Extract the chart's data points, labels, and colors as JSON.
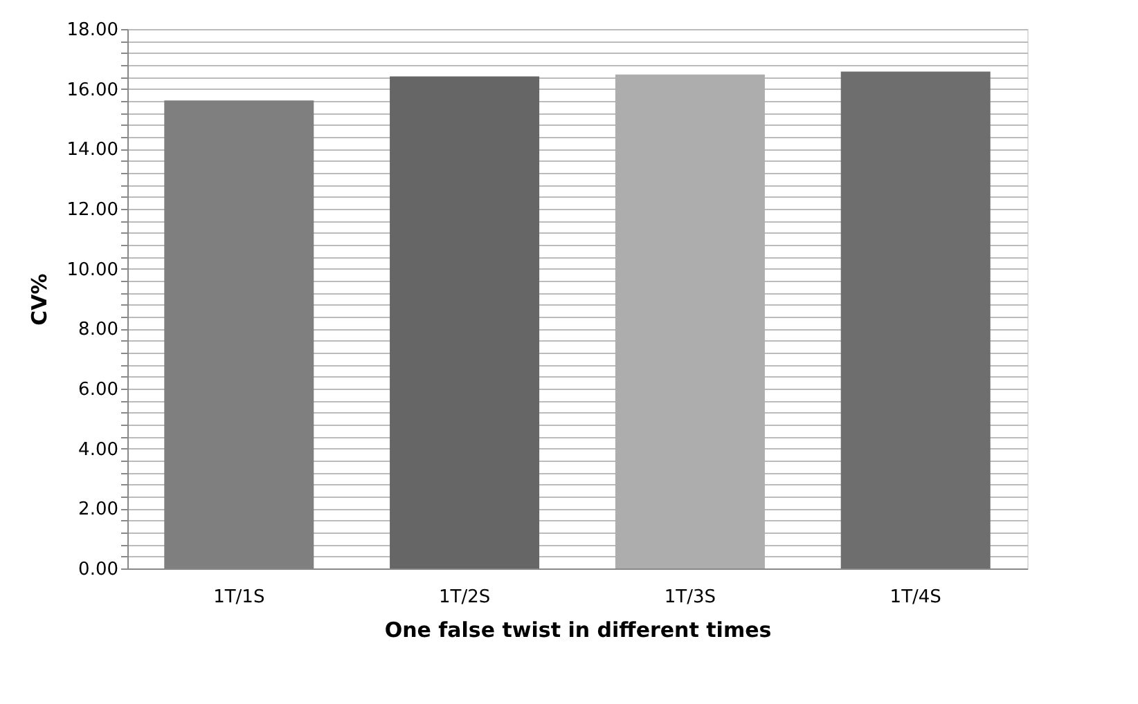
{
  "chart_data": {
    "type": "bar",
    "xlabel": "One false twist in different times",
    "ylabel": "CV%",
    "categories": [
      "1T/1S",
      "1T/2S",
      "1T/3S",
      "1T/4S"
    ],
    "values": [
      15.62,
      16.42,
      16.48,
      16.58
    ],
    "colors": [
      "#7f7f7f",
      "#666666",
      "#adadad",
      "#6e6e6e"
    ],
    "ylim": [
      0,
      18
    ],
    "yticks": [
      {
        "value": 0,
        "label": "0.00"
      },
      {
        "value": 0.4,
        "label": null
      },
      {
        "value": 0.8,
        "label": null
      },
      {
        "value": 1.2,
        "label": null
      },
      {
        "value": 1.6,
        "label": null
      },
      {
        "value": 2,
        "label": "2.00"
      },
      {
        "value": 2.4,
        "label": null
      },
      {
        "value": 2.8,
        "label": null
      },
      {
        "value": 3.2,
        "label": null
      },
      {
        "value": 3.6,
        "label": null
      },
      {
        "value": 4,
        "label": "4.00"
      },
      {
        "value": 4.4,
        "label": null
      },
      {
        "value": 4.8,
        "label": null
      },
      {
        "value": 5.2,
        "label": null
      },
      {
        "value": 5.6,
        "label": null
      },
      {
        "value": 6,
        "label": "6.00"
      },
      {
        "value": 6.4,
        "label": null
      },
      {
        "value": 6.8,
        "label": null
      },
      {
        "value": 7.2,
        "label": null
      },
      {
        "value": 7.6,
        "label": null
      },
      {
        "value": 8,
        "label": "8.00"
      },
      {
        "value": 8.4,
        "label": null
      },
      {
        "value": 8.8,
        "label": null
      },
      {
        "value": 9.2,
        "label": null
      },
      {
        "value": 9.6,
        "label": null
      },
      {
        "value": 10,
        "label": "10.00"
      },
      {
        "value": 10.4,
        "label": null
      },
      {
        "value": 10.8,
        "label": null
      },
      {
        "value": 11.2,
        "label": null
      },
      {
        "value": 11.6,
        "label": null
      },
      {
        "value": 12,
        "label": "12.00"
      },
      {
        "value": 12.4,
        "label": null
      },
      {
        "value": 12.8,
        "label": null
      },
      {
        "value": 13.2,
        "label": null
      },
      {
        "value": 13.6,
        "label": null
      },
      {
        "value": 14,
        "label": "14.00"
      },
      {
        "value": 14.4,
        "label": null
      },
      {
        "value": 14.8,
        "label": null
      },
      {
        "value": 15.2,
        "label": null
      },
      {
        "value": 15.6,
        "label": null
      },
      {
        "value": 16,
        "label": "16.00"
      },
      {
        "value": 16.4,
        "label": null
      },
      {
        "value": 16.8,
        "label": null
      },
      {
        "value": 17.2,
        "label": null
      },
      {
        "value": 17.6,
        "label": null
      },
      {
        "value": 18,
        "label": "18.00"
      }
    ],
    "grid": true
  }
}
